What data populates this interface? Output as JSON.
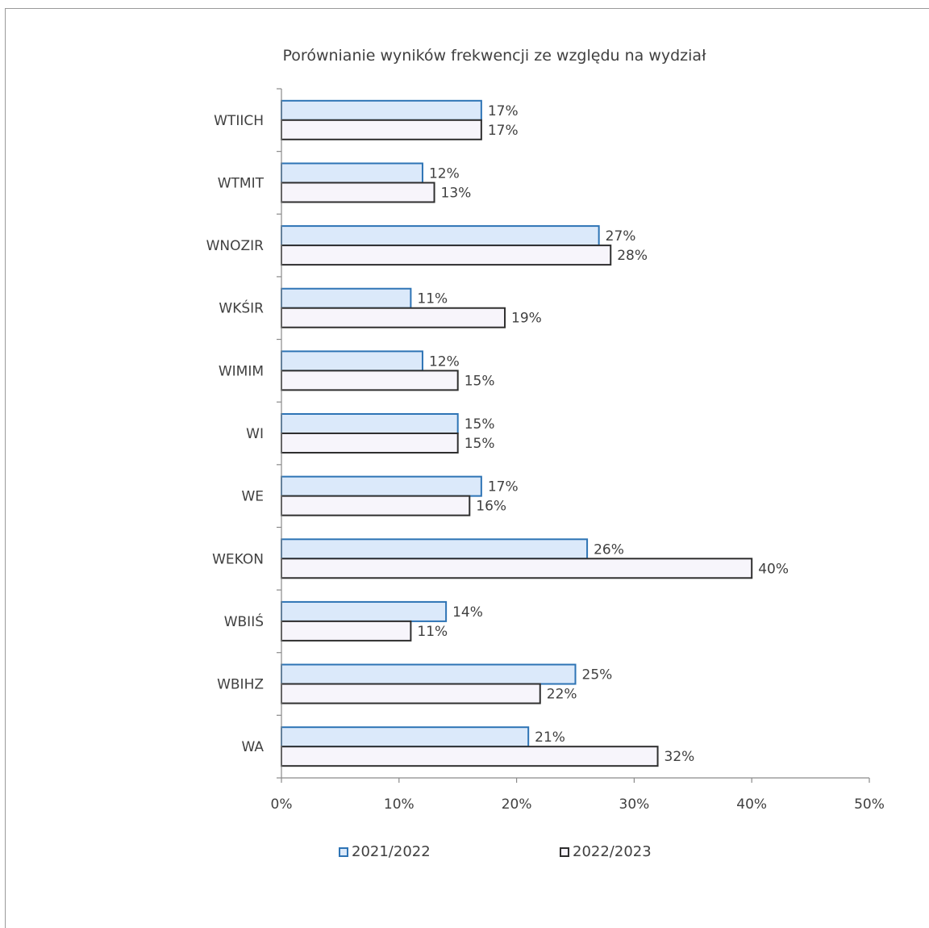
{
  "chart_data": {
    "type": "bar",
    "orientation": "horizontal",
    "title": "Porównianie wyników frekwencji ze względu na wydział",
    "categories": [
      "WTIICH",
      "WTMIT",
      "WNOZIR",
      "WKŚIR",
      "WIMIM",
      "WI",
      "WE",
      "WEKON",
      "WBIIŚ",
      "WBIHZ",
      "WA"
    ],
    "series": [
      {
        "name": "2021/2022",
        "values": [
          17,
          12,
          27,
          11,
          12,
          15,
          17,
          26,
          14,
          25,
          21
        ],
        "labels": [
          "17%",
          "12%",
          "27%",
          "11%",
          "12%",
          "15%",
          "17%",
          "26%",
          "14%",
          "25%",
          "21%"
        ],
        "fill": "#dbe9fa",
        "stroke": "#2e74b5"
      },
      {
        "name": "2022/2023",
        "values": [
          17,
          13,
          28,
          19,
          15,
          15,
          16,
          40,
          11,
          22,
          32
        ],
        "labels": [
          "17%",
          "13%",
          "28%",
          "19%",
          "15%",
          "15%",
          "16%",
          "40%",
          "11%",
          "22%",
          "32%"
        ],
        "fill": "#f7f5fb",
        "stroke": "#2f2f2f"
      }
    ],
    "xlim": [
      0,
      50
    ],
    "x_ticks": [
      0,
      10,
      20,
      30,
      40,
      50
    ],
    "x_tick_labels": [
      "0%",
      "10%",
      "20%",
      "30%",
      "40%",
      "50%"
    ],
    "xlabel": "",
    "ylabel": "",
    "grid": false,
    "legend_position": "bottom"
  }
}
